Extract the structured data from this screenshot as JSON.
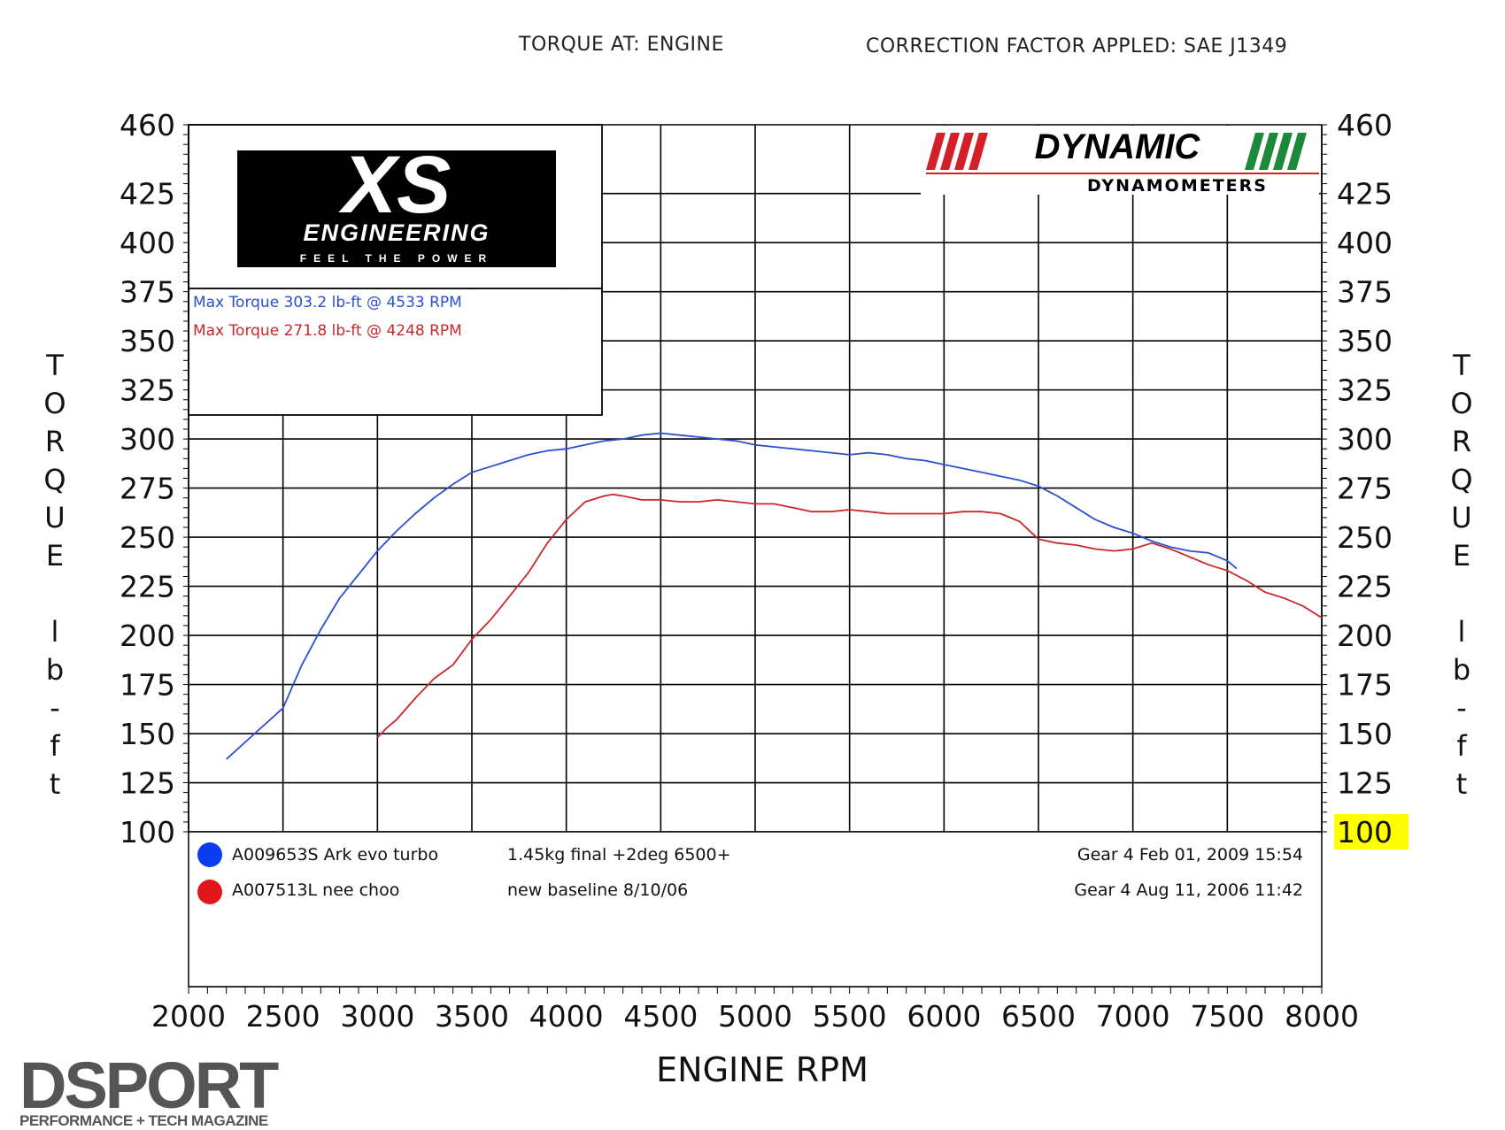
{
  "header": {
    "torque_at": "TORQUE AT: ENGINE",
    "correction": "CORRECTION FACTOR APPLED: SAE J1349"
  },
  "logos": {
    "xs_main": "XS",
    "xs_engineering": "ENGINEERING",
    "xs_slogan": "FEEL THE POWER",
    "dynamic_main": "DYNAMIC",
    "dynamic_sub": "DYNAMOMETERS",
    "dsport_main": "DSPORT",
    "dsport_sub": "PERFORMANCE + TECH MAGAZINE"
  },
  "colors": {
    "blue": "#2a4fd0",
    "red": "#c8282a",
    "highlight": "#ffff00",
    "dynamic_red": "#d41f26",
    "dynamic_green": "#1a8a3a"
  },
  "chart_data": {
    "type": "line",
    "xlabel": "ENGINE RPM",
    "ylabel": "TORQUE lb-ft",
    "xlim": [
      2000,
      8000
    ],
    "ylim": [
      100,
      460
    ],
    "x_ticks": [
      2000,
      2500,
      3000,
      3500,
      4000,
      4500,
      5000,
      5500,
      6000,
      6500,
      7000,
      7500,
      8000
    ],
    "y_ticks": [
      100,
      125,
      150,
      175,
      200,
      225,
      250,
      275,
      300,
      325,
      350,
      375,
      400,
      425,
      460
    ],
    "y_left_labels": [
      "460",
      "425",
      "400",
      "375",
      "350",
      "325",
      "300",
      "275",
      "250",
      "225",
      "200",
      "175",
      "150",
      "125",
      "100"
    ],
    "y_right_labels": [
      "460",
      "425",
      "400",
      "375",
      "350",
      "325",
      "300",
      "275",
      "250",
      "225",
      "200",
      "175",
      "150",
      "125",
      "100"
    ],
    "y_axis_title_letters": [
      "T",
      "O",
      "R",
      "Q",
      "U",
      "E",
      "",
      "l",
      "b",
      "-",
      "f",
      "t"
    ],
    "grid": true,
    "max_lines": [
      {
        "text": "Max Torque 303.2 lb-ft @ 4533 RPM",
        "color": "blue"
      },
      {
        "text": "Max Torque 271.8 lb-ft @ 4248 RPM",
        "color": "red"
      }
    ],
    "series": [
      {
        "id": "A009653S",
        "name": "A009653S Ark evo turbo",
        "note": "1.45kg final +2deg 6500+",
        "date": "Gear 4 Feb 01, 2009 15:54",
        "color": "blue",
        "x": [
          2200,
          2350,
          2500,
          2600,
          2700,
          2800,
          2900,
          3000,
          3100,
          3200,
          3300,
          3400,
          3500,
          3600,
          3700,
          3800,
          3900,
          4000,
          4100,
          4200,
          4300,
          4400,
          4500,
          4600,
          4700,
          4800,
          4900,
          5000,
          5100,
          5200,
          5300,
          5400,
          5500,
          5600,
          5700,
          5800,
          5900,
          6000,
          6100,
          6200,
          6300,
          6400,
          6500,
          6600,
          6700,
          6800,
          6900,
          7000,
          7100,
          7200,
          7300,
          7400,
          7500,
          7550
        ],
        "y": [
          137,
          150,
          163,
          185,
          203,
          219,
          231,
          243,
          253,
          262,
          270,
          277,
          283,
          286,
          289,
          292,
          294,
          295,
          297,
          299,
          300,
          302,
          303,
          302,
          301,
          300,
          299,
          297,
          296,
          295,
          294,
          293,
          292,
          293,
          292,
          290,
          289,
          287,
          285,
          283,
          281,
          279,
          276,
          271,
          265,
          259,
          255,
          252,
          248,
          245,
          243,
          242,
          238,
          234
        ]
      },
      {
        "id": "A007513L",
        "name": "A007513L nee choo",
        "note": "new baseline 8/10/06",
        "date": "Gear 4 Aug 11, 2006 11:42",
        "color": "red",
        "x": [
          3000,
          3050,
          3100,
          3200,
          3300,
          3400,
          3500,
          3600,
          3700,
          3800,
          3900,
          4000,
          4100,
          4200,
          4248,
          4300,
          4400,
          4500,
          4600,
          4700,
          4800,
          4900,
          5000,
          5100,
          5200,
          5300,
          5400,
          5500,
          5600,
          5700,
          5800,
          5900,
          6000,
          6100,
          6200,
          6300,
          6400,
          6500,
          6600,
          6700,
          6800,
          6900,
          7000,
          7100,
          7200,
          7300,
          7400,
          7500,
          7600,
          7700,
          7800,
          7900,
          8000
        ],
        "y": [
          148,
          153,
          157,
          168,
          178,
          185,
          198,
          208,
          220,
          232,
          247,
          259,
          268,
          271,
          271.8,
          271,
          269,
          269,
          268,
          268,
          269,
          268,
          267,
          267,
          265,
          263,
          263,
          264,
          263,
          262,
          262,
          262,
          262,
          263,
          263,
          262,
          258,
          249,
          247,
          246,
          244,
          243,
          244,
          247,
          244,
          240,
          236,
          233,
          228,
          222,
          219,
          215,
          209
        ]
      }
    ]
  }
}
